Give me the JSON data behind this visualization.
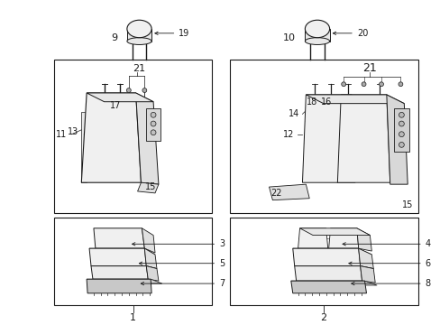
{
  "bg_color": "#ffffff",
  "line_color": "#1a1a1a",
  "fig_width": 4.89,
  "fig_height": 3.6,
  "dpi": 100,
  "box_color": "#ffffff",
  "seat_fill": "#f2f2f2",
  "seat_dark": "#d8d8d8",
  "seat_mid": "#e8e8e8"
}
